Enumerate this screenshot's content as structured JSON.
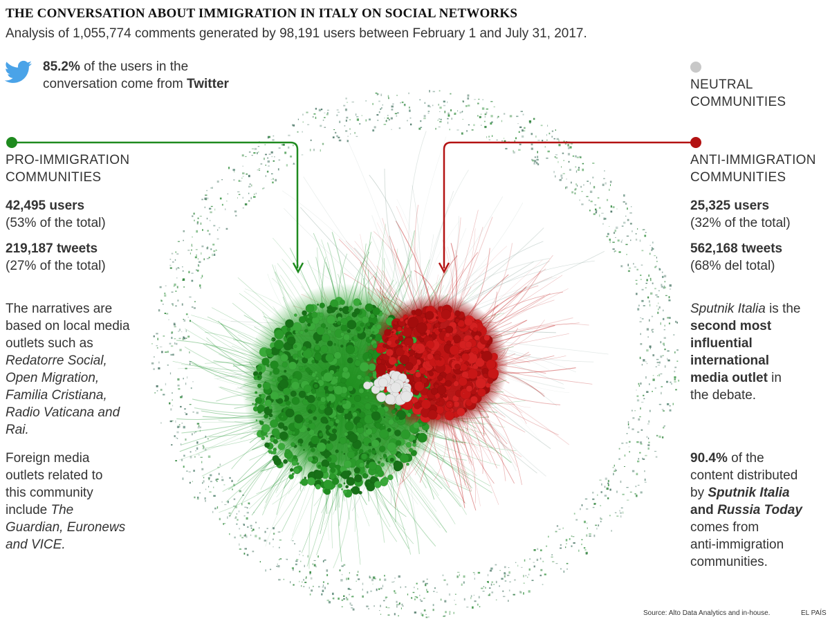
{
  "header": {
    "title": "THE CONVERSATION ABOUT IMMIGRATION IN ITALY ON SOCIAL NETWORKS",
    "subtitle": "Analysis of 1,055,774 comments generated by 98,191 users between February 1 and July 31, 2017."
  },
  "twitter_note": {
    "icon": "twitter-bird-icon",
    "pct": "85.2%",
    "text_a": " of the users in the",
    "text_b": "conversation come from ",
    "platform": "Twitter"
  },
  "neutral": {
    "title_a": "NEUTRAL",
    "title_b": "COMMUNITIES",
    "color": "#c8c8c8"
  },
  "pro": {
    "color": "#1e8a1e",
    "title_a": "PRO-IMMIGRATION",
    "title_b": "COMMUNITIES",
    "users": "42,495 users",
    "users_pct": "(53% of the total)",
    "tweets": "219,187 tweets",
    "tweets_pct": "(27% of the total)",
    "narr_1": "The narratives are",
    "narr_2": "based on local media",
    "narr_3": "outlets such as",
    "narr_4": "Redatorre Social,",
    "narr_5": "Open Migration,",
    "narr_6": "Familia Cristiana,",
    "narr_7": "Radio Vaticana and",
    "narr_8": "Rai.",
    "foreign_1": "Foreign media",
    "foreign_2": "outlets related to",
    "foreign_3": "this community",
    "foreign_4a": "include ",
    "foreign_4b": "The",
    "foreign_5": "Guardian, Euronews",
    "foreign_6": "and VICE."
  },
  "anti": {
    "color": "#b31212",
    "title_a": "ANTI-IMMIGRATION",
    "title_b": "COMMUNITIES",
    "users": "25,325 users",
    "users_pct": "(32% of the total)",
    "tweets": "562,168 tweets",
    "tweets_pct": "(68% del total)",
    "sputnik_1a": "Sputnik Italia",
    "sputnik_1b": " is the",
    "sputnik_2": "second most",
    "sputnik_3": "influential",
    "sputnik_4": "international",
    "sputnik_5a": "media outlet",
    "sputnik_5b": " in",
    "sputnik_6": "the debate.",
    "content_1a": "90.4%",
    "content_1b": " of the",
    "content_2": "content distributed",
    "content_3a": "by ",
    "content_3b": "Sputnik Italia",
    "content_4a": "and ",
    "content_4b": "Russia Today",
    "content_5": "comes from",
    "content_6": "anti-immigration",
    "content_7": "communities."
  },
  "footer": {
    "source": "Source: Alto Data Analytics and in-house.",
    "brand": "EL PAÍS"
  }
}
